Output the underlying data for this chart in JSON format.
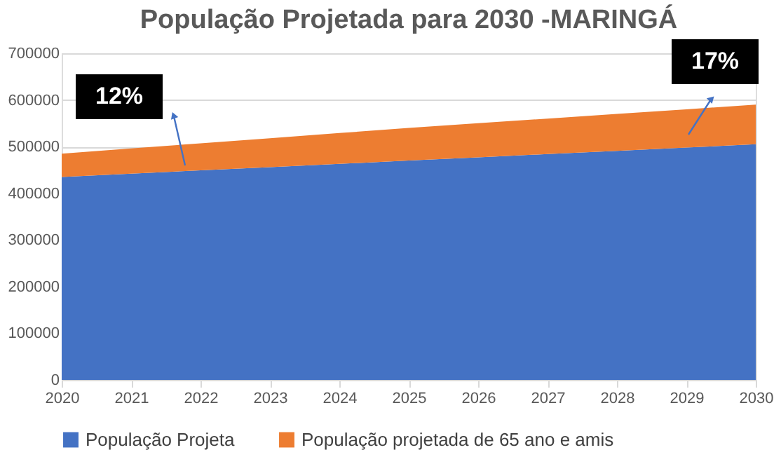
{
  "chart_data": {
    "type": "area",
    "title": "População Projetada para 2030 -MARINGÁ",
    "stacked": true,
    "x": [
      2020,
      2021,
      2022,
      2023,
      2024,
      2025,
      2026,
      2027,
      2028,
      2029,
      2030
    ],
    "series": [
      {
        "name": "População Projeta",
        "color": "#4472c4",
        "values": [
          435000,
          442000,
          449000,
          456000,
          463000,
          470000,
          477000,
          484000,
          491000,
          498000,
          505000
        ]
      },
      {
        "name": "População projetada de 65 ano e amis",
        "color": "#ed7d31",
        "values": [
          50000,
          54000,
          58000,
          62000,
          66000,
          70000,
          73000,
          76000,
          79000,
          82000,
          85000
        ]
      }
    ],
    "xlim": [
      2020,
      2030
    ],
    "xticks": [
      2020,
      2021,
      2022,
      2023,
      2024,
      2025,
      2026,
      2027,
      2028,
      2029,
      2030
    ],
    "ylim": [
      0,
      700000
    ],
    "yticks": [
      0,
      100000,
      200000,
      300000,
      400000,
      500000,
      600000,
      700000
    ],
    "grid": "y",
    "legend": "bottom",
    "annotations": [
      "12%",
      "17%"
    ]
  }
}
